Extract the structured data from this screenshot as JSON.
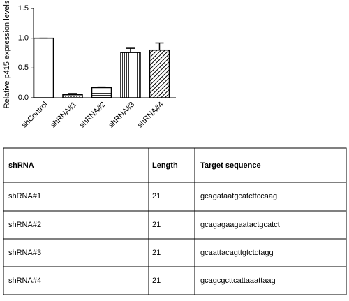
{
  "chart_data": {
    "type": "bar",
    "y_label": "Relative p415 expression levels",
    "categories": [
      "shControl",
      "shRNA#1",
      "shRNA#2",
      "shRNA#3",
      "shRNA#4"
    ],
    "values": [
      1.0,
      0.05,
      0.17,
      0.76,
      0.8
    ],
    "errors": [
      0,
      0.02,
      0.01,
      0.07,
      0.12
    ],
    "patterns": [
      "none",
      "dots",
      "horizontal",
      "vertical",
      "diagonal"
    ],
    "color": "#000000",
    "ylim": [
      0,
      1.5
    ],
    "yticks": [
      {
        "value": 0,
        "label": "0.0"
      },
      {
        "value": 0.5,
        "label": "0.5"
      },
      {
        "value": 1,
        "label": "1.0"
      },
      {
        "value": 1.5,
        "label": "1.5"
      }
    ]
  },
  "table": {
    "header": [
      "shRNA",
      "Length",
      "Target sequence"
    ],
    "rows": [
      [
        "shRNA#1",
        "21",
        "gcagataatgcatcttccaag"
      ],
      [
        "shRNA#2",
        "21",
        "gcagagaagaatactgcatct"
      ],
      [
        "shRNA#3",
        "21",
        "gcaattacagttgtctctagg"
      ],
      [
        "shRNA#4",
        "21",
        "gcagcgcttcattaaattaag"
      ]
    ]
  }
}
